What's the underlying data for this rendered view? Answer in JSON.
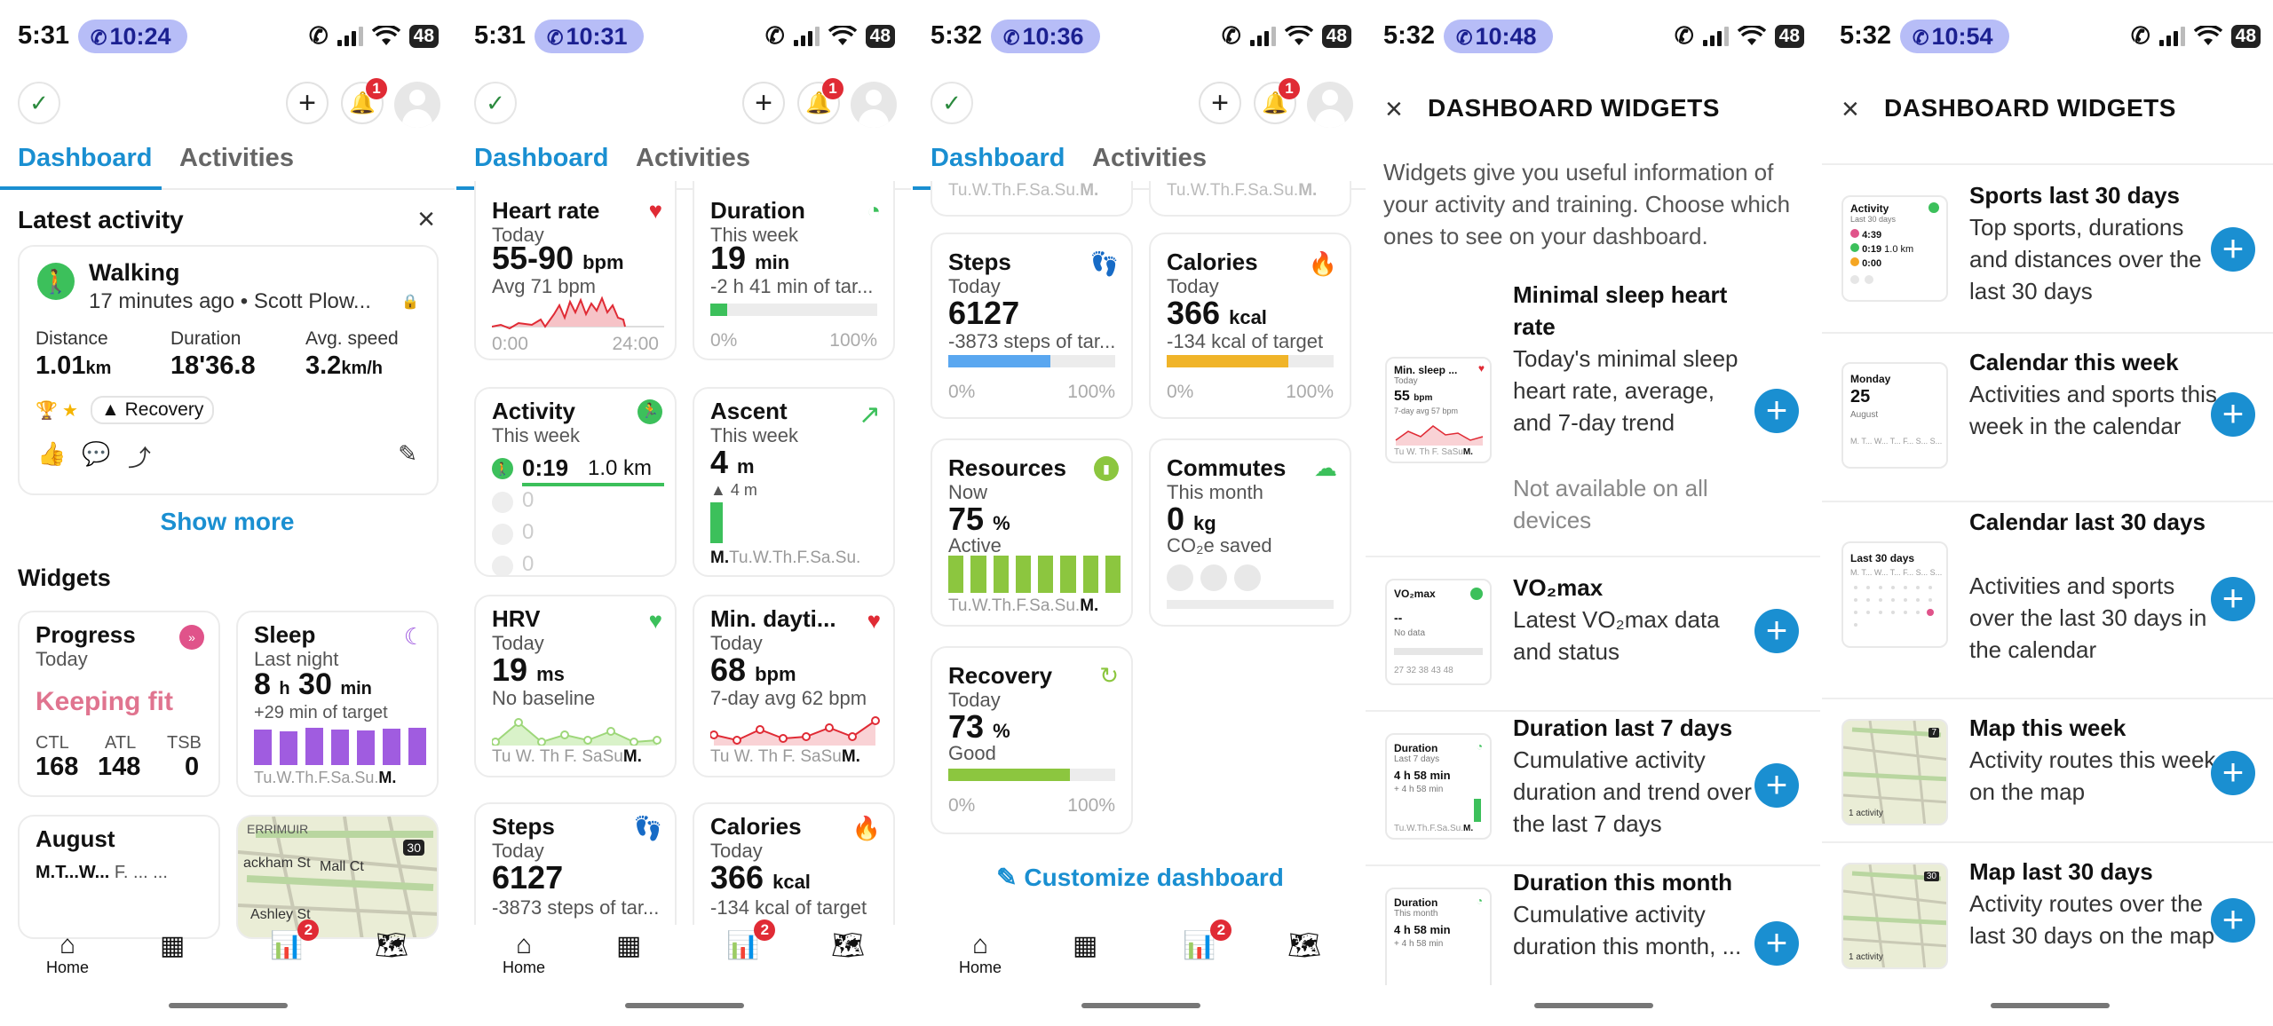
{
  "screens": [
    {
      "status": {
        "time": "5:31",
        "call": "10:24",
        "battery": "48"
      },
      "notif_count": "1",
      "tabs": {
        "dashboard": "Dashboard",
        "activities": "Activities"
      },
      "latest": {
        "heading": "Latest activity",
        "type": "Walking",
        "meta": "17 minutes ago • Scott Plow...",
        "stats": [
          {
            "label": "Distance",
            "value": "1.01",
            "unit": "km"
          },
          {
            "label": "Duration",
            "value": "18'36.8",
            "unit": ""
          },
          {
            "label": "Avg. speed",
            "value": "3.2",
            "unit": "km/h"
          }
        ],
        "tag": "Recovery",
        "show_more": "Show more"
      },
      "widgets_heading": "Widgets",
      "progress": {
        "title": "Progress",
        "sub": "Today",
        "status": "Keeping fit",
        "metrics": [
          {
            "label": "CTL",
            "value": "168"
          },
          {
            "label": "ATL",
            "value": "148"
          },
          {
            "label": "TSB",
            "value": "0"
          }
        ]
      },
      "sleep": {
        "title": "Sleep",
        "sub": "Last night",
        "hours": "8",
        "h": "h",
        "mins": "30",
        "min": "min",
        "note": "+29 min of target",
        "days": "Tu.W.Th.F.Sa.Su.",
        "today": "M."
      },
      "august": {
        "title": "August",
        "days": "M.T...W...",
        "days2": "F. ... ..."
      },
      "map": {
        "place": "ERRIMUIR",
        "s1": "ackham St",
        "s2": "Mall Ct",
        "s3": "Ashley St",
        "num": "30"
      },
      "stats_badge": "2",
      "nav_home": "Home"
    },
    {
      "status": {
        "time": "5:31",
        "call": "10:31",
        "battery": "48"
      },
      "notif_count": "1",
      "tabs": {
        "dashboard": "Dashboard",
        "activities": "Activities"
      },
      "hr": {
        "title": "Heart rate",
        "sub": "Today",
        "value": "55-90",
        "unit": "bpm",
        "note": "Avg 71 bpm",
        "x0": "0:00",
        "x1": "24:00"
      },
      "duration": {
        "title": "Duration",
        "sub": "This week",
        "value": "19",
        "unit": "min",
        "note": "-2 h 41 min of tar...",
        "x0": "0%",
        "x1": "100%",
        "progress": 0.1
      },
      "activity": {
        "title": "Activity",
        "sub": "This week",
        "row1_time": "0:19",
        "row1_dist": "1.0 km",
        "rows": [
          "0",
          "0",
          "0"
        ]
      },
      "ascent": {
        "title": "Ascent",
        "sub": "This week",
        "value": "4",
        "unit": "m",
        "note": "▲ 4 m",
        "days": "Tu.W.Th.F.Sa.Su.",
        "today": "M."
      },
      "hrv": {
        "title": "HRV",
        "sub": "Today",
        "value": "19",
        "unit": "ms",
        "note": "No baseline",
        "days": "Tu W. Th F. SaSu",
        "today": "M."
      },
      "mindaytime": {
        "title": "Min. dayti...",
        "sub": "Today",
        "value": "68",
        "unit": "bpm",
        "note": "7-day avg 62 bpm",
        "days": "Tu W. Th F. SaSu",
        "today": "M."
      },
      "steps": {
        "title": "Steps",
        "sub": "Today",
        "value": "6127",
        "note": "-3873 steps of tar..."
      },
      "calories": {
        "title": "Calories",
        "sub": "Today",
        "value": "366",
        "unit": "kcal",
        "note": "-134 kcal of target"
      },
      "stats_badge": "2",
      "nav_home": "Home"
    },
    {
      "status": {
        "time": "5:32",
        "call": "10:36",
        "battery": "48"
      },
      "notif_count": "1",
      "tabs": {
        "dashboard": "Dashboard",
        "activities": "Activities"
      },
      "top_fragment": "Tu.W.Th.F.Sa.Su.",
      "top_fragment_today": "M.",
      "steps": {
        "title": "Steps",
        "sub": "Today",
        "value": "6127",
        "note": "-3873 steps of tar...",
        "x0": "0%",
        "x1": "100%",
        "progress": 0.61
      },
      "calories": {
        "title": "Calories",
        "sub": "Today",
        "value": "366",
        "unit": "kcal",
        "note": "-134 kcal of target",
        "x0": "0%",
        "x1": "100%",
        "progress": 0.73
      },
      "resources": {
        "title": "Resources",
        "sub": "Now",
        "value": "75",
        "unit": "%",
        "note": "Active",
        "days": "Tu.W.Th.F.Sa.Su.",
        "today": "M."
      },
      "commutes": {
        "title": "Commutes",
        "sub": "This month",
        "value": "0",
        "unit": "kg",
        "note": "CO₂e saved"
      },
      "recovery": {
        "title": "Recovery",
        "sub": "Today",
        "value": "73",
        "unit": "%",
        "note": "Good",
        "x0": "0%",
        "x1": "100%",
        "progress": 0.73
      },
      "customize": "Customize dashboard",
      "stats_badge": "2",
      "nav_home": "Home"
    },
    {
      "status": {
        "time": "5:32",
        "call": "10:48",
        "battery": "48"
      },
      "title": "DASHBOARD WIDGETS",
      "intro": "Widgets give you useful information of your activity and training. Choose which ones to see on your dashboard.",
      "items": [
        {
          "title": "Minimal sleep heart rate",
          "desc": "Today's minimal sleep heart rate, average, and 7-day trend",
          "extra": "Not available on all devices",
          "thumb": {
            "t": "Min. sleep ...",
            "s": "Today",
            "v": "55",
            "u": "bpm",
            "n": "7-day avg 57 bpm",
            "days": "Tu W. Th F. SaSu",
            "today": "M."
          }
        },
        {
          "title": "VO₂max",
          "desc": "Latest VO₂max data and status",
          "thumb": {
            "t": "VO₂max",
            "v": "--",
            "n": "No data",
            "ticks": "27 32 38 43 48"
          }
        },
        {
          "title": "Duration last 7 days",
          "desc": "Cumulative activity duration and trend over the last 7 days",
          "thumb": {
            "t": "Duration",
            "s": "Last 7 days",
            "v": "4 h 58 min",
            "n": "+ 4 h 58 min",
            "days": "Tu.W.Th.F.Sa.Su.",
            "today": "M."
          }
        },
        {
          "title": "Duration this month",
          "desc": "Cumulative activity duration this month, ...",
          "thumb": {
            "t": "Duration",
            "s": "This month",
            "v": "4 h 58 min",
            "n": "+ 4 h 58 min"
          }
        }
      ]
    },
    {
      "status": {
        "time": "5:32",
        "call": "10:54",
        "battery": "48"
      },
      "title": "DASHBOARD WIDGETS",
      "items": [
        {
          "title": "Sports last 30 days",
          "desc": "Top sports, durations and distances over the last 30 days",
          "thumb": {
            "t": "Activity",
            "s": "Last 30 days",
            "r1": "4:39",
            "r2": "0:19",
            "r2b": "1.0 km",
            "r3": "0:00"
          }
        },
        {
          "title": "Calendar this week",
          "desc": "Activities and sports this week in the calendar",
          "thumb": {
            "t": "Monday",
            "v": "25",
            "s": "August",
            "days": "M. T... W... T... F... S... S..."
          }
        },
        {
          "title": "Calendar last 30 days",
          "desc": "Activities and sports over the last 30 days in the calendar",
          "thumb": {
            "t": "Last 30 days",
            "days": "M. T... W... T... F... S... S..."
          }
        },
        {
          "title": "Map this week",
          "desc": "Activity routes this week on the map",
          "thumb": {
            "n": "1 activity",
            "num": "7"
          }
        },
        {
          "title": "Map last 30 days",
          "desc": "Activity routes over the last 30 days on the map",
          "thumb": {
            "n": "1 activity",
            "num": "30"
          }
        }
      ]
    }
  ],
  "colors": {
    "accent": "#1a8fd1",
    "green": "#3cc05b",
    "pink": "#e0748f",
    "purple": "#a05ce0",
    "red": "#e02b35",
    "orange": "#f5a623",
    "yellowbar": "#f0b429",
    "bluebar": "#5aa7f0"
  }
}
